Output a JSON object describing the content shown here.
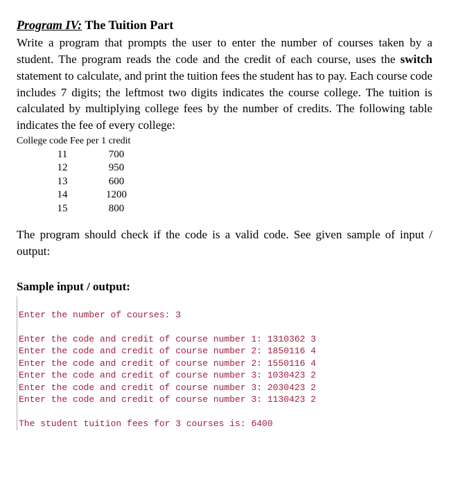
{
  "title": {
    "program_label": "Program IV:",
    "rest": " The Tuition Part"
  },
  "body": {
    "t1": "Write a program that prompts the user to enter the number of courses taken by a student. The program reads the code and the credit of each course, uses the ",
    "switch_word": "switch",
    "t2": " statement to calculate, and print the tuition fees the student has to pay. Each course code includes 7 digits; the leftmost two digits indicates the course college. The tuition is calculated by multiplying college fees by the number of credits. The following table indicates the fee of every college:"
  },
  "table": {
    "header": "College code Fee per 1 credit",
    "rows": [
      {
        "code": "11",
        "fee": "700"
      },
      {
        "code": "12",
        "fee": "950"
      },
      {
        "code": "13",
        "fee": "600"
      },
      {
        "code": "14",
        "fee": "1200"
      },
      {
        "code": "15",
        "fee": "800"
      }
    ]
  },
  "check_text": "The program should check if the code is a valid code. See given sample of input / output:",
  "sample_heading": "Sample input / output:",
  "console": {
    "l1": "Enter the number of courses: 3",
    "blank1": " ",
    "l2": "Enter the code and credit of course number 1: 1310362 3",
    "l3": "Enter the code and credit of course number 2: 1850116 4",
    "l4": "Enter the code and credit of course number 2: 1550116 4",
    "l5": "Enter the code and credit of course number 3: 1030423 2",
    "l6": "Enter the code and credit of course number 3: 2030423 2",
    "l7": "Enter the code and credit of course number 3: 1130423 2",
    "blank2": " ",
    "l8": "The student tuition fees for 3 courses is: 6400"
  }
}
